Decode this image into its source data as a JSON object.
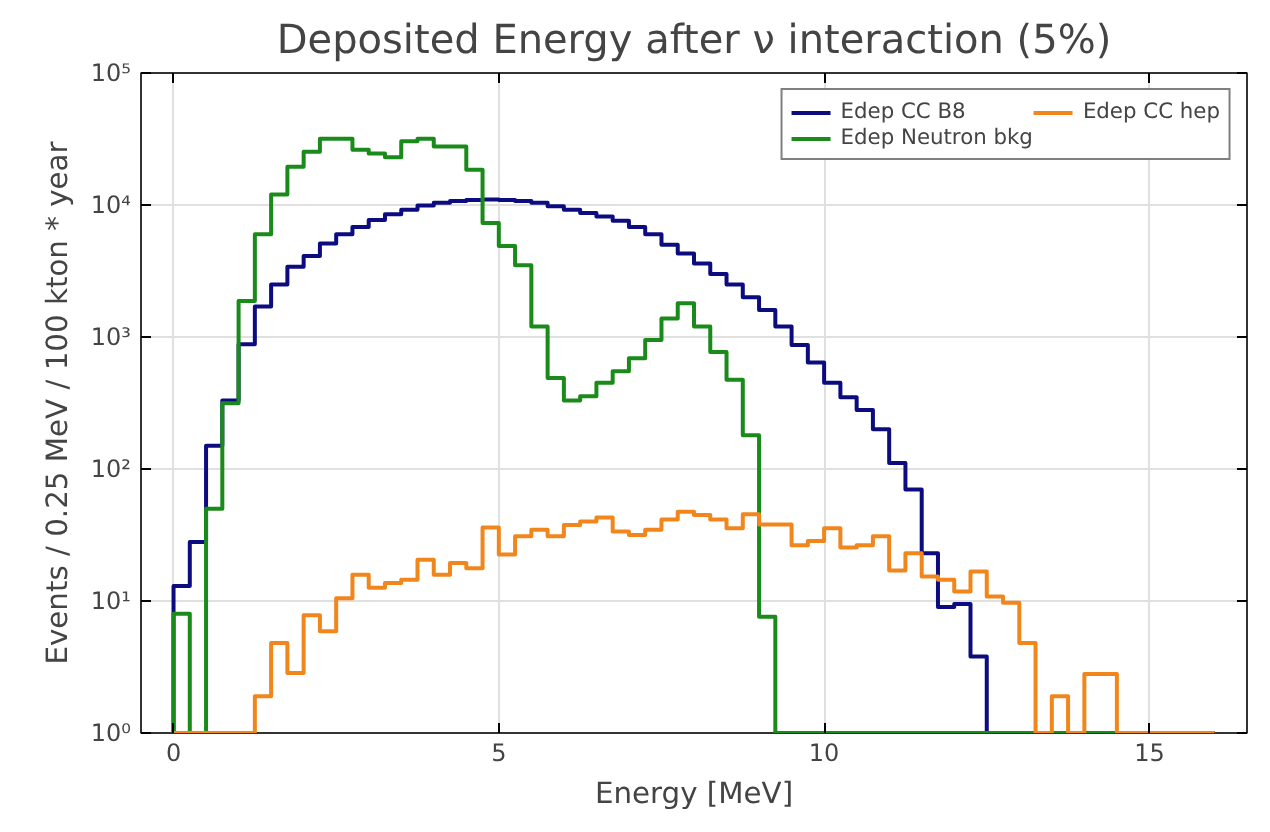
{
  "chart_data": {
    "type": "histogram",
    "title": "Deposited Energy after ν interaction (5%)",
    "xlabel": "Energy [MeV]",
    "ylabel": "Events / 0.25 MeV / 100 kton * year",
    "bins": [
      0,
      0.25,
      0.5,
      0.75,
      1,
      1.25,
      1.5,
      1.75,
      2,
      2.25,
      2.5,
      2.75,
      3,
      3.25,
      3.5,
      3.75,
      4,
      4.25,
      4.5,
      4.75,
      5,
      5.25,
      5.5,
      5.75,
      6,
      6.25,
      6.5,
      6.75,
      7,
      7.25,
      7.5,
      7.75,
      8,
      8.25,
      8.5,
      8.75,
      9,
      9.25,
      9.5,
      9.75,
      10,
      10.25,
      10.5,
      10.75,
      11,
      11.25,
      11.5,
      11.75,
      12,
      12.25,
      12.5,
      12.75,
      13,
      13.25,
      13.5,
      13.75,
      14,
      14.25,
      14.5,
      14.75,
      15,
      15.25,
      15.5,
      15.75,
      16
    ],
    "series": [
      {
        "name": "Edep CC B8",
        "color": "#0c0c80",
        "values": [
          13,
          28,
          150,
          330,
          880,
          1700,
          2500,
          3400,
          4100,
          5100,
          6000,
          6800,
          7700,
          8500,
          9200,
          9900,
          10400,
          10700,
          10900,
          11000,
          10900,
          10700,
          10400,
          9800,
          9200,
          8700,
          8200,
          7600,
          6800,
          6000,
          5000,
          4300,
          3600,
          3000,
          2500,
          2000,
          1600,
          1200,
          870,
          640,
          450,
          350,
          280,
          200,
          111,
          70,
          23,
          9,
          9.5,
          3.8,
          null,
          null,
          null,
          null,
          null,
          null,
          null,
          null,
          null,
          null,
          null,
          null,
          null,
          null
        ]
      },
      {
        "name": "Edep Neutron bkg",
        "color": "#1a8a1a",
        "values": [
          8,
          null,
          50,
          315,
          1870,
          6000,
          12000,
          19500,
          25300,
          31800,
          31800,
          26200,
          24600,
          23000,
          30400,
          31800,
          27700,
          27700,
          18500,
          7300,
          4900,
          3500,
          1200,
          490,
          330,
          355,
          450,
          550,
          690,
          950,
          1380,
          1800,
          1200,
          770,
          475,
          180,
          7.6,
          null,
          null,
          null,
          null,
          null,
          null,
          null,
          null,
          null,
          null,
          null,
          null,
          null,
          null,
          null,
          null,
          null,
          null,
          null,
          null,
          null,
          null,
          null,
          null,
          null,
          null,
          null
        ]
      },
      {
        "name": "Edep CC hep",
        "color": "#f0861c",
        "values": [
          null,
          null,
          null,
          null,
          null,
          1.9,
          4.8,
          2.85,
          7.8,
          5.9,
          10.5,
          15.8,
          12.6,
          13.7,
          14.5,
          20.5,
          15.8,
          19.4,
          17.7,
          36,
          22.5,
          30.9,
          34.7,
          30.9,
          37.7,
          40,
          42.9,
          33.6,
          31.6,
          34.7,
          41.5,
          47.5,
          44.8,
          41.5,
          35.5,
          45.4,
          38,
          38,
          26.5,
          28.5,
          35.5,
          25.4,
          26.5,
          30.9,
          17,
          23,
          15.3,
          14.5,
          11.8,
          16.7,
          10.8,
          9.7,
          4.8,
          null,
          1.9,
          null,
          2.8,
          2.8,
          null,
          null,
          null,
          null,
          null,
          null
        ]
      }
    ],
    "xlim": [
      -0.5,
      16.5
    ],
    "ylim": [
      1,
      100000
    ],
    "xticks": [
      0,
      5,
      10,
      15
    ],
    "yticks": [
      {
        "value": 1,
        "label": "10⁰"
      },
      {
        "value": 10,
        "label": "10¹"
      },
      {
        "value": 100,
        "label": "10²"
      },
      {
        "value": 1000,
        "label": "10³"
      },
      {
        "value": 10000,
        "label": "10⁴"
      },
      {
        "value": 100000,
        "label": "10⁵"
      }
    ],
    "log": true,
    "grid": true,
    "legend": "top right"
  }
}
